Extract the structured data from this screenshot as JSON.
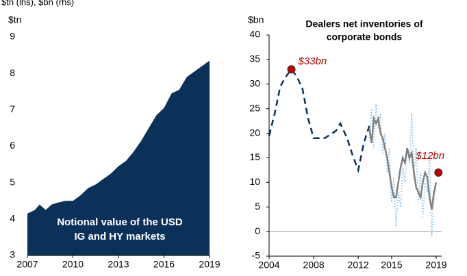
{
  "header": "$tn (lhs), $bn (rhs)",
  "chart_data": [
    {
      "type": "area",
      "y_label": "$tn",
      "annotation": [
        "Notional value of the USD",
        "IG and HY markets"
      ],
      "xlim": [
        2007,
        2019
      ],
      "xticks": [
        2007,
        2010,
        2013,
        2016,
        2019
      ],
      "ylim": [
        3,
        9
      ],
      "yticks": [
        3,
        4,
        5,
        6,
        7,
        8,
        9
      ],
      "series": [
        {
          "color": "#0b3159",
          "x": [
            2007,
            2007.5,
            2007.8,
            2008.2,
            2008.6,
            2009,
            2009.5,
            2010,
            2010.5,
            2011,
            2011.5,
            2012,
            2012.5,
            2013,
            2013.5,
            2014,
            2014.5,
            2015,
            2015.5,
            2016,
            2016.5,
            2017,
            2017.5,
            2018,
            2018.5,
            2019
          ],
          "values": [
            4.15,
            4.25,
            4.4,
            4.25,
            4.4,
            4.45,
            4.5,
            4.5,
            4.65,
            4.85,
            4.95,
            5.1,
            5.25,
            5.45,
            5.6,
            5.85,
            6.15,
            6.5,
            6.85,
            7.05,
            7.45,
            7.55,
            7.9,
            8.05,
            8.2,
            8.35
          ]
        }
      ]
    },
    {
      "type": "line",
      "y_label": "$bn",
      "title": [
        "Dealers net inventories of",
        "corporate bonds"
      ],
      "xlim": [
        2004,
        2019
      ],
      "xticks": [
        2004,
        2008,
        2012,
        2015,
        2019
      ],
      "ylim": [
        -5,
        40
      ],
      "yticks": [
        -5,
        0,
        5,
        10,
        15,
        20,
        25,
        30,
        35,
        40
      ],
      "zero_line": true,
      "series": [
        {
          "style": "dotted",
          "color": "#8fc3ea",
          "x": [
            2013,
            2013.2,
            2013.4,
            2013.6,
            2013.8,
            2014,
            2014.2,
            2014.4,
            2014.6,
            2014.8,
            2015,
            2015.2,
            2015.4,
            2015.6,
            2015.8,
            2016,
            2016.2,
            2016.4,
            2016.6,
            2016.8,
            2017,
            2017.2,
            2017.4,
            2017.6,
            2017.8,
            2018,
            2018.2,
            2018.4,
            2018.6,
            2018.8,
            2019
          ],
          "values": [
            19,
            25,
            17,
            26,
            21,
            24,
            16,
            20,
            12,
            17,
            6,
            11,
            1,
            8,
            5,
            13,
            10,
            17,
            14,
            24,
            11,
            17,
            6,
            12,
            3,
            10,
            8,
            15,
            -1,
            7,
            9
          ]
        },
        {
          "style": "dashed",
          "color": "#0b3159",
          "x": [
            2004,
            2004.5,
            2005,
            2005.5,
            2006,
            2006.5,
            2007,
            2007.5,
            2008,
            2009,
            2010,
            2010.4,
            2011,
            2011.5,
            2012,
            2012.5,
            2013
          ],
          "values": [
            19.5,
            24,
            29.5,
            31.5,
            33,
            31.5,
            29,
            23,
            19,
            19,
            20.5,
            22,
            19,
            15.5,
            12.5,
            18,
            21.5
          ]
        },
        {
          "style": "solid",
          "color": "#808080",
          "x": [
            2013,
            2013.2,
            2013.4,
            2013.6,
            2013.8,
            2014,
            2014.2,
            2014.4,
            2014.6,
            2014.8,
            2015,
            2015.2,
            2015.4,
            2015.6,
            2015.8,
            2016,
            2016.2,
            2016.4,
            2016.6,
            2016.8,
            2017,
            2017.2,
            2017.4,
            2017.6,
            2017.8,
            2018,
            2018.2,
            2018.4,
            2018.6,
            2018.8,
            2019
          ],
          "values": [
            21,
            18,
            23,
            22,
            23,
            20,
            19,
            17,
            15,
            12,
            9,
            7,
            7,
            10,
            13,
            15,
            14,
            17,
            15,
            16,
            12,
            9,
            8,
            7,
            10,
            12,
            11,
            7,
            4.5,
            8,
            10
          ]
        },
        {
          "style": "marker",
          "color": "#c00000",
          "x": [
            2006,
            2019.2
          ],
          "values": [
            33,
            12
          ],
          "value_labels": [
            "$33bn",
            "$12bn"
          ]
        }
      ]
    }
  ]
}
